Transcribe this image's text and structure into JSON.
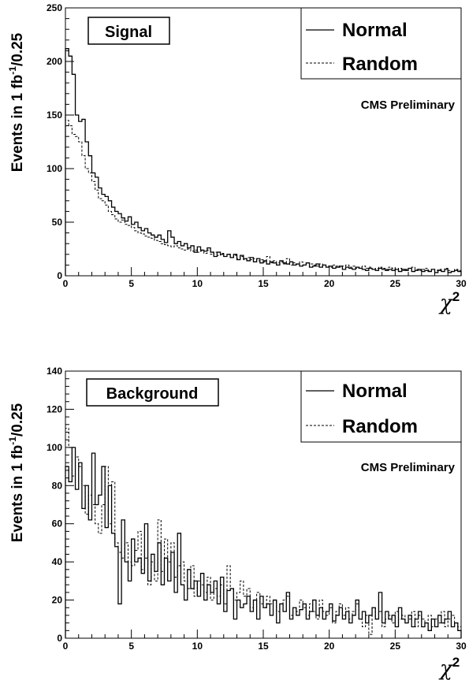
{
  "chart_data": [
    {
      "type": "step-histogram",
      "badge": "Signal",
      "ylabel": "Events in 1 fb",
      "ylabel_sup": "-1",
      "ylabel_tail": "/0.25",
      "xlabel": "χ",
      "xlabel_sup": "2",
      "annotation": "CMS Preliminary",
      "xlim": [
        0,
        30
      ],
      "ylim": [
        0,
        250
      ],
      "bin_width": 0.25,
      "x_ticks": [
        0,
        5,
        10,
        15,
        20,
        25,
        30
      ],
      "y_ticks": [
        0,
        50,
        100,
        150,
        200,
        250
      ],
      "legend": {
        "position": "top-right",
        "entries": [
          "Normal",
          "Random"
        ]
      },
      "series": [
        {
          "name": "Normal",
          "style": "solid",
          "values": [
            212,
            205,
            188,
            150,
            144,
            146,
            125,
            112,
            96,
            92,
            82,
            76,
            74,
            70,
            64,
            60,
            58,
            54,
            51,
            55,
            48,
            50,
            45,
            42,
            44,
            40,
            38,
            36,
            38,
            34,
            31,
            42,
            36,
            30,
            32,
            28,
            30,
            26,
            28,
            22,
            27,
            24,
            23,
            26,
            22,
            18,
            22,
            20,
            18,
            20,
            17,
            20,
            15,
            19,
            16,
            14,
            17,
            13,
            16,
            12,
            14,
            11,
            13,
            12,
            10,
            14,
            12,
            11,
            13,
            10,
            11,
            9,
            10,
            12,
            8,
            9,
            11,
            8,
            10,
            8,
            9,
            7,
            8,
            9,
            6,
            8,
            7,
            6,
            8,
            7,
            6,
            5,
            7,
            6,
            5,
            7,
            6,
            5,
            6,
            5,
            6,
            4,
            6,
            5,
            7,
            4,
            5,
            6,
            4,
            5,
            4,
            6,
            3,
            5,
            4,
            6,
            3,
            4,
            5,
            4
          ]
        },
        {
          "name": "Random",
          "style": "dashed",
          "values": [
            145,
            140,
            132,
            130,
            125,
            112,
            100,
            96,
            88,
            80,
            72,
            70,
            66,
            60,
            57,
            53,
            50,
            52,
            48,
            47,
            45,
            42,
            40,
            39,
            37,
            36,
            35,
            33,
            32,
            30,
            29,
            28,
            27,
            28,
            26,
            25,
            24,
            25,
            23,
            24,
            22,
            23,
            21,
            24,
            20,
            22,
            19,
            21,
            18,
            20,
            17,
            19,
            16,
            18,
            15,
            17,
            15,
            16,
            14,
            15,
            13,
            18,
            12,
            14,
            12,
            13,
            11,
            16,
            10,
            12,
            11,
            13,
            10,
            12,
            11,
            10,
            9,
            11,
            10,
            9,
            8,
            10,
            9,
            8,
            9,
            10,
            8,
            9,
            7,
            8,
            9,
            7,
            8,
            6,
            7,
            8,
            7,
            6,
            8,
            7,
            6,
            7,
            5,
            6,
            7,
            8,
            6,
            5,
            6,
            7,
            5,
            6,
            5,
            6,
            4,
            7,
            5,
            4,
            6,
            5
          ]
        }
      ]
    },
    {
      "type": "step-histogram",
      "badge": "Background",
      "ylabel": "Events in 1 fb",
      "ylabel_sup": "-1",
      "ylabel_tail": "/0.25",
      "xlabel": "χ",
      "xlabel_sup": "2",
      "annotation": "CMS Preliminary",
      "xlim": [
        0,
        30
      ],
      "ylim": [
        0,
        140
      ],
      "bin_width": 0.25,
      "x_ticks": [
        0,
        5,
        10,
        15,
        20,
        25,
        30
      ],
      "y_ticks": [
        0,
        20,
        40,
        60,
        80,
        100,
        120,
        140
      ],
      "legend": {
        "position": "top-right",
        "entries": [
          "Normal",
          "Random"
        ]
      },
      "series": [
        {
          "name": "Normal",
          "style": "solid",
          "values": [
            90,
            82,
            100,
            78,
            92,
            68,
            80,
            62,
            97,
            70,
            75,
            90,
            58,
            80,
            55,
            48,
            18,
            62,
            40,
            30,
            52,
            40,
            42,
            34,
            60,
            30,
            44,
            35,
            50,
            28,
            42,
            30,
            45,
            24,
            55,
            28,
            20,
            36,
            26,
            30,
            22,
            34,
            20,
            28,
            24,
            30,
            18,
            32,
            14,
            25,
            26,
            10,
            20,
            16,
            18,
            22,
            14,
            20,
            10,
            22,
            16,
            18,
            12,
            20,
            8,
            18,
            14,
            24,
            10,
            16,
            12,
            15,
            18,
            10,
            14,
            20,
            12,
            16,
            10,
            14,
            18,
            9,
            12,
            16,
            10,
            14,
            8,
            12,
            20,
            10,
            14,
            8,
            12,
            16,
            10,
            24,
            8,
            14,
            10,
            12,
            6,
            16,
            10,
            8,
            12,
            6,
            10,
            14,
            6,
            8,
            4,
            10,
            6,
            12,
            8,
            10,
            14,
            6,
            8,
            4
          ]
        },
        {
          "name": "Random",
          "style": "dashed",
          "values": [
            110,
            100,
            85,
            95,
            90,
            80,
            65,
            75,
            70,
            60,
            55,
            70,
            90,
            60,
            82,
            50,
            45,
            42,
            50,
            40,
            38,
            46,
            56,
            36,
            42,
            28,
            40,
            30,
            62,
            35,
            52,
            40,
            50,
            32,
            38,
            40,
            30,
            26,
            38,
            22,
            30,
            28,
            24,
            32,
            20,
            26,
            22,
            28,
            18,
            38,
            26,
            20,
            24,
            30,
            22,
            26,
            16,
            20,
            24,
            18,
            16,
            22,
            18,
            20,
            14,
            18,
            20,
            22,
            12,
            16,
            14,
            20,
            16,
            12,
            18,
            14,
            10,
            20,
            14,
            12,
            16,
            8,
            14,
            18,
            12,
            16,
            10,
            14,
            18,
            10,
            6,
            12,
            2,
            16,
            10,
            14,
            6,
            10,
            12,
            8,
            14,
            10,
            12,
            8,
            10,
            14,
            6,
            12,
            10,
            8,
            12,
            6,
            10,
            8,
            14,
            6,
            10,
            12,
            8,
            6
          ]
        }
      ]
    }
  ]
}
